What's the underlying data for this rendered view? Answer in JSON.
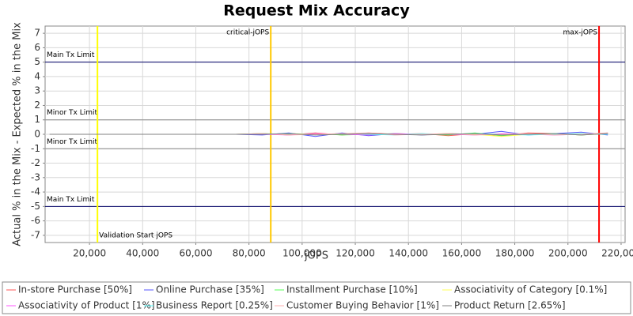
{
  "chart_data": {
    "type": "line",
    "title": "Request Mix Accuracy",
    "x_label": "jOPS",
    "y_label": "Actual % in the Mix - Expected % in the Mix",
    "xlim": [
      3300,
      221500
    ],
    "ylim": [
      -7.5,
      7.5
    ],
    "xticks": [
      {
        "value": 20000,
        "label": "20,000"
      },
      {
        "value": 40000,
        "label": "40,000"
      },
      {
        "value": 60000,
        "label": "60,000"
      },
      {
        "value": 80000,
        "label": "80,000"
      },
      {
        "value": 100000,
        "label": "100,000"
      },
      {
        "value": 120000,
        "label": "120,000"
      },
      {
        "value": 140000,
        "label": "140,000"
      },
      {
        "value": 160000,
        "label": "160,000"
      },
      {
        "value": 180000,
        "label": "180,000"
      },
      {
        "value": 200000,
        "label": "200,000"
      },
      {
        "value": 220000,
        "label": "220,000"
      }
    ],
    "yticks": [
      -7,
      -6,
      -5,
      -4,
      -3,
      -2,
      -1,
      0,
      1,
      2,
      3,
      4,
      5,
      6,
      7
    ],
    "grid": true,
    "limit_lines": [
      {
        "label": "Main Tx Limit",
        "value": 5
      },
      {
        "label": "Minor Tx Limit",
        "value": 1
      },
      {
        "label": "Minor Tx Limit",
        "value": -1
      },
      {
        "label": "Main Tx Limit",
        "value": -5
      }
    ],
    "markers": [
      {
        "label": "Validation Start jOPS",
        "value": 23000,
        "color": "#ffff00"
      },
      {
        "label": "critical-jOPS",
        "value": 88200,
        "color": "#ffc800"
      },
      {
        "label": "max-jOPS",
        "value": 211700,
        "color": "#ff0000"
      }
    ],
    "x": [
      5000,
      15000,
      25000,
      35000,
      45000,
      55000,
      65000,
      75000,
      85000,
      95000,
      105000,
      115000,
      125000,
      135000,
      145000,
      155000,
      165000,
      175000,
      185000,
      195000,
      205000,
      215000
    ],
    "series": [
      {
        "name": "In-store Purchase [50%]",
        "color": "#ff5555",
        "values": [
          0,
          0,
          0,
          0,
          0,
          0,
          0,
          0,
          0.05,
          -0.05,
          0.1,
          -0.05,
          0.1,
          0,
          0.05,
          -0.1,
          0.05,
          -0.1,
          0.1,
          0.05,
          -0.05,
          0.1
        ]
      },
      {
        "name": "Online Purchase [35%]",
        "color": "#5555ff",
        "values": [
          0,
          0,
          0,
          0,
          0,
          0,
          0,
          0,
          -0.05,
          0.1,
          -0.15,
          0.1,
          -0.1,
          0.05,
          -0.05,
          0.05,
          0,
          0.2,
          -0.05,
          0.05,
          0.15,
          -0.05
        ]
      },
      {
        "name": "Installment Purchase [10%]",
        "color": "#55ff55",
        "values": [
          0,
          0,
          0,
          0,
          0,
          0,
          0,
          0,
          0.05,
          0,
          0.05,
          -0.05,
          0,
          0.05,
          0,
          -0.05,
          0.1,
          -0.1,
          0,
          0.05,
          -0.05,
          0.05
        ]
      },
      {
        "name": "Associativity of Category [0.1%]",
        "color": "#ffff55",
        "values": [
          0,
          0,
          0,
          0,
          0,
          0,
          0,
          0,
          0,
          0.05,
          0,
          0,
          0.05,
          0,
          0,
          0.05,
          0,
          -0.15,
          0,
          0,
          0.05,
          0
        ]
      },
      {
        "name": "Associativity of Product [1%]",
        "color": "#ff55ff",
        "values": [
          0,
          0,
          0,
          0,
          0,
          0,
          0,
          0,
          0,
          -0.05,
          0.05,
          0,
          -0.05,
          0.05,
          0,
          0,
          -0.05,
          0.05,
          0,
          -0.05,
          0,
          0.05
        ]
      },
      {
        "name": "Business Report [0.25%]",
        "color": "#55ffff",
        "values": [
          0,
          0,
          0,
          0,
          0,
          0,
          0,
          0,
          0,
          0.05,
          -0.05,
          0.05,
          0,
          -0.05,
          0.05,
          0,
          0.05,
          0,
          -0.05,
          0,
          0.05,
          0
        ]
      },
      {
        "name": "Customer Buying Behavior [1%]",
        "color": "#ffafaf",
        "values": [
          0,
          0,
          0,
          0,
          0,
          0,
          0,
          0,
          0.05,
          -0.05,
          0,
          0.05,
          0.1,
          -0.05,
          0,
          0.05,
          -0.05,
          0,
          0.05,
          -0.05,
          0,
          0.1
        ]
      },
      {
        "name": "Product Return [2.65%]",
        "color": "#808080",
        "values": [
          0,
          0,
          0,
          0,
          0,
          0,
          0,
          0,
          0,
          0.05,
          -0.05,
          0,
          0.05,
          0,
          -0.05,
          0,
          0.05,
          -0.05,
          0,
          0.05,
          -0.05,
          0.05
        ]
      }
    ]
  }
}
